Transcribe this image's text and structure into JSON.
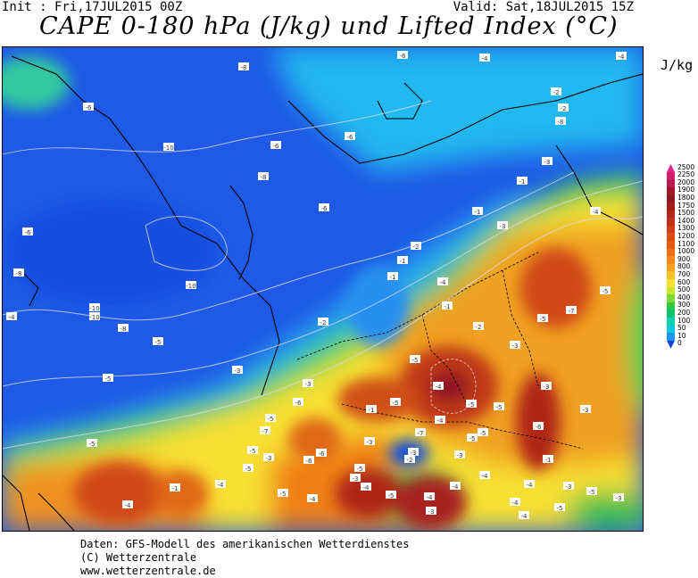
{
  "header": {
    "init": "Init : Fri,17JUL2015 00Z",
    "valid": "Valid: Sat,18JUL2015 15Z",
    "title": "CAPE 0-180 hPa (J/kg) und Lifted Index (°C)"
  },
  "legend": {
    "unit": "J/kg",
    "levels": [
      {
        "label": "2500",
        "color": "#e8248c"
      },
      {
        "label": "2250",
        "color": "#d0206e"
      },
      {
        "label": "2000",
        "color": "#b81c50"
      },
      {
        "label": "1900",
        "color": "#a01830"
      },
      {
        "label": "1800",
        "color": "#901820"
      },
      {
        "label": "1750",
        "color": "#a02018"
      },
      {
        "label": "1500",
        "color": "#b02818"
      },
      {
        "label": "1400",
        "color": "#c03018"
      },
      {
        "label": "1300",
        "color": "#d03c14"
      },
      {
        "label": "1200",
        "color": "#e04c10"
      },
      {
        "label": "1100",
        "color": "#e85c10"
      },
      {
        "label": "1000",
        "color": "#f07010"
      },
      {
        "label": "900",
        "color": "#f88818"
      },
      {
        "label": "800",
        "color": "#f8a020"
      },
      {
        "label": "700",
        "color": "#f8c028"
      },
      {
        "label": "600",
        "color": "#f8e030"
      },
      {
        "label": "500",
        "color": "#c8e830"
      },
      {
        "label": "400",
        "color": "#80d838"
      },
      {
        "label": "300",
        "color": "#30c840"
      },
      {
        "label": "200",
        "color": "#10c070"
      },
      {
        "label": "100",
        "color": "#10d0b0"
      },
      {
        "label": "50",
        "color": "#10c8e0"
      },
      {
        "label": "10",
        "color": "#1898f0"
      },
      {
        "label": "0",
        "color": "#1040e0"
      }
    ]
  },
  "map_labels": [
    "-6",
    "-8",
    "-6",
    "-4",
    "-4",
    "-2",
    "-2",
    "-8",
    "-10",
    "-6",
    "-6",
    "-8",
    "-6",
    "-6",
    "-8",
    "-10",
    "-10",
    "-4",
    "-10",
    "-8",
    "-2",
    "-1",
    "-2",
    "-1",
    "-1",
    "-3",
    "-1",
    "-3",
    "-4",
    "-5",
    "-7",
    "-5",
    "-4",
    "-1",
    "-2",
    "-3",
    "-3",
    "-3",
    "-5",
    "-5",
    "-5",
    "-5",
    "-6",
    "-1",
    "-5",
    "-5",
    "-4",
    "-4",
    "-5",
    "-5",
    "-5",
    "-6",
    "-3",
    "-3",
    "-5",
    "-3",
    "-4",
    "-4",
    "-1",
    "-5",
    "-3",
    "-7",
    "-3",
    "-2",
    "-3",
    "-5",
    "-6",
    "-6",
    "-7",
    "-5",
    "-3",
    "-5",
    "-4",
    "-1",
    "-4",
    "-5",
    "-4",
    "-3",
    "-4",
    "-5",
    "-3",
    "-4",
    "-4",
    "-4",
    "-4",
    "-3",
    "-5"
  ],
  "footer": {
    "line1": "Daten: GFS-Modell des amerikanischen Wetterdienstes",
    "line2": "(C) Wetterzentrale",
    "line3": "www.wetterzentrale.de"
  }
}
